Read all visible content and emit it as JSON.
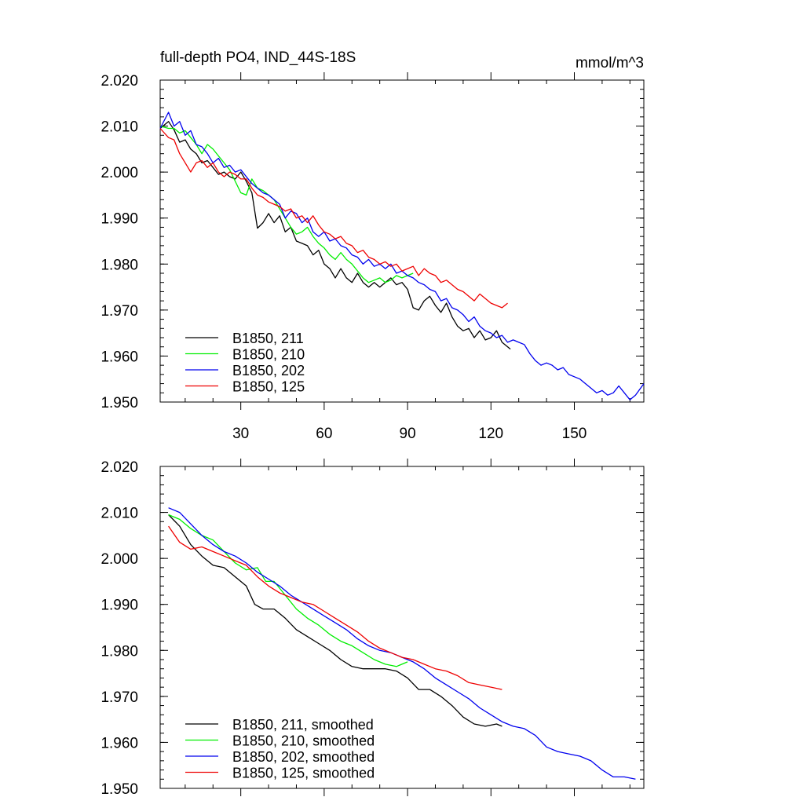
{
  "header": {
    "left_title": "full-depth PO4, IND_44S-18S",
    "right_title": "mmol/m^3"
  },
  "colors": {
    "black": "#000000",
    "green": "#00ee00",
    "blue": "#0000ee",
    "red": "#ee0000"
  },
  "chart_data": [
    {
      "type": "line",
      "title": "full-depth PO4, IND_44S-18S",
      "units": "mmol/m^3",
      "xlim": [
        1,
        175
      ],
      "ylim": [
        1.95,
        2.02
      ],
      "x_ticks": [
        30,
        60,
        90,
        120,
        150
      ],
      "x_tick_labels": [
        "30",
        "60",
        "90",
        "120",
        "150"
      ],
      "y_ticks": [
        1.95,
        1.96,
        1.97,
        1.98,
        1.99,
        2.0,
        2.01,
        2.02
      ],
      "y_tick_labels": [
        "1.950",
        "1.960",
        "1.970",
        "1.980",
        "1.990",
        "2.000",
        "2.010",
        "2.020"
      ],
      "legend": "bottom-left",
      "series": [
        {
          "name": "B1850, 211",
          "color": "#000000",
          "x": [
            1,
            4,
            6,
            8,
            10,
            12,
            14,
            16,
            18,
            20,
            22,
            24,
            26,
            28,
            30,
            32,
            34,
            36,
            38,
            40,
            42,
            44,
            46,
            48,
            50,
            52,
            54,
            56,
            58,
            60,
            62,
            64,
            66,
            68,
            70,
            72,
            74,
            76,
            78,
            80,
            82,
            84,
            86,
            88,
            90,
            92,
            94,
            96,
            98,
            100,
            102,
            104,
            106,
            108,
            110,
            112,
            114,
            116,
            118,
            120,
            122,
            124,
            127
          ],
          "values": [
            2.0095,
            2.011,
            2.0092,
            2.0065,
            2.007,
            2.005,
            2.004,
            2.002,
            2.0025,
            2.001,
            1.9995,
            2.0,
            1.999,
            1.9985,
            2.0,
            1.998,
            1.9955,
            1.9878,
            1.989,
            1.991,
            1.989,
            1.9905,
            1.987,
            1.988,
            1.985,
            1.9845,
            1.984,
            1.982,
            1.983,
            1.98,
            1.979,
            1.977,
            1.979,
            1.977,
            1.976,
            1.978,
            1.976,
            1.975,
            1.976,
            1.975,
            1.976,
            1.977,
            1.9755,
            1.976,
            1.9745,
            1.9705,
            1.97,
            1.972,
            1.973,
            1.971,
            1.9695,
            1.9715,
            1.9685,
            1.9665,
            1.9655,
            1.966,
            1.964,
            1.9655,
            1.9635,
            1.964,
            1.9655,
            1.963,
            1.9615
          ]
        },
        {
          "name": "B1850, 210",
          "color": "#00ee00",
          "x": [
            1,
            4,
            6,
            8,
            10,
            12,
            14,
            16,
            18,
            20,
            22,
            24,
            26,
            28,
            30,
            32,
            34,
            36,
            38,
            40,
            42,
            44,
            46,
            48,
            50,
            52,
            54,
            56,
            58,
            60,
            62,
            64,
            66,
            68,
            70,
            72,
            74,
            76,
            78,
            80,
            82,
            84,
            86,
            88,
            90,
            92
          ],
          "values": [
            2.01,
            2.0095,
            2.0095,
            2.0085,
            2.009,
            2.0075,
            2.006,
            2.004,
            2.006,
            2.005,
            2.0035,
            2.002,
            2.0005,
            1.998,
            1.9955,
            1.995,
            1.9985,
            1.9965,
            1.996,
            1.995,
            1.994,
            1.992,
            1.99,
            1.988,
            1.9865,
            1.987,
            1.988,
            1.986,
            1.9845,
            1.9835,
            1.982,
            1.981,
            1.9825,
            1.981,
            1.98,
            1.9785,
            1.977,
            1.976,
            1.9765,
            1.977,
            1.976,
            1.9765,
            1.9775,
            1.977,
            1.9775,
            1.978
          ]
        },
        {
          "name": "B1850, 202",
          "color": "#0000ee",
          "x": [
            1,
            4,
            6,
            8,
            10,
            12,
            14,
            16,
            18,
            20,
            22,
            24,
            26,
            28,
            30,
            32,
            34,
            36,
            38,
            40,
            42,
            44,
            46,
            48,
            50,
            52,
            54,
            56,
            58,
            60,
            62,
            64,
            66,
            68,
            70,
            72,
            74,
            76,
            78,
            80,
            82,
            84,
            86,
            88,
            90,
            92,
            94,
            96,
            98,
            100,
            102,
            104,
            106,
            108,
            110,
            112,
            114,
            116,
            118,
            120,
            122,
            124,
            126,
            128,
            130,
            132,
            134,
            136,
            138,
            140,
            142,
            144,
            146,
            148,
            150,
            152,
            154,
            156,
            158,
            160,
            162,
            164,
            166,
            168,
            170,
            172,
            175
          ],
          "values": [
            2.0095,
            2.013,
            2.01,
            2.011,
            2.008,
            2.009,
            2.006,
            2.0055,
            2.004,
            2.002,
            2.003,
            2.001,
            2.0015,
            2.0,
            2.0005,
            1.999,
            1.9975,
            1.9965,
            1.9955,
            1.995,
            1.994,
            1.993,
            1.99,
            1.9915,
            1.991,
            1.989,
            1.99,
            1.987,
            1.986,
            1.987,
            1.985,
            1.9855,
            1.984,
            1.9835,
            1.982,
            1.9815,
            1.98,
            1.981,
            1.9795,
            1.98,
            1.979,
            1.98,
            1.978,
            1.9785,
            1.9775,
            1.977,
            1.976,
            1.9755,
            1.9745,
            1.974,
            1.972,
            1.9725,
            1.9705,
            1.97,
            1.969,
            1.9675,
            1.9685,
            1.9665,
            1.9655,
            1.965,
            1.964,
            1.9645,
            1.963,
            1.9635,
            1.963,
            1.9625,
            1.9605,
            1.959,
            1.958,
            1.9585,
            1.958,
            1.957,
            1.9575,
            1.956,
            1.9555,
            1.955,
            1.954,
            1.953,
            1.952,
            1.9525,
            1.9515,
            1.952,
            1.9535,
            1.952,
            1.9505,
            1.9515,
            1.954
          ]
        },
        {
          "name": "B1850, 125",
          "color": "#ee0000",
          "x": [
            1,
            4,
            6,
            8,
            10,
            12,
            14,
            16,
            18,
            20,
            22,
            24,
            26,
            28,
            30,
            32,
            34,
            36,
            38,
            40,
            42,
            44,
            46,
            48,
            50,
            52,
            54,
            56,
            58,
            60,
            62,
            64,
            66,
            68,
            70,
            72,
            74,
            76,
            78,
            80,
            82,
            84,
            86,
            88,
            90,
            92,
            94,
            96,
            98,
            100,
            102,
            104,
            106,
            108,
            110,
            112,
            114,
            116,
            118,
            120,
            122,
            124,
            126
          ],
          "values": [
            2.0095,
            2.0075,
            2.007,
            2.004,
            2.002,
            2.0,
            2.002,
            2.0025,
            2.001,
            2.002,
            2.0,
            1.999,
            2.0,
            1.9995,
            1.9985,
            1.9985,
            1.9965,
            1.995,
            1.9945,
            1.9935,
            1.993,
            1.9925,
            1.9915,
            1.992,
            1.99,
            1.9905,
            1.989,
            1.9905,
            1.9885,
            1.987,
            1.9865,
            1.9855,
            1.986,
            1.9845,
            1.984,
            1.9825,
            1.983,
            1.9815,
            1.981,
            1.98,
            1.9805,
            1.9795,
            1.98,
            1.9785,
            1.979,
            1.9795,
            1.9775,
            1.979,
            1.978,
            1.9775,
            1.976,
            1.9765,
            1.9755,
            1.9745,
            1.974,
            1.973,
            1.972,
            1.9735,
            1.9725,
            1.9715,
            1.971,
            1.9705,
            1.9715
          ]
        }
      ]
    },
    {
      "type": "line",
      "xlim": [
        1,
        175
      ],
      "ylim": [
        1.95,
        2.02
      ],
      "x_ticks": [
        30,
        60,
        90,
        120,
        150
      ],
      "y_ticks": [
        1.95,
        1.96,
        1.97,
        1.98,
        1.99,
        2.0,
        2.01,
        2.02
      ],
      "y_tick_labels": [
        "1.950",
        "1.960",
        "1.970",
        "1.980",
        "1.990",
        "2.000",
        "2.010",
        "2.020"
      ],
      "legend": "bottom-left",
      "series": [
        {
          "name": "B1850, 211, smoothed",
          "color": "#000000",
          "x": [
            4,
            8,
            12,
            16,
            20,
            24,
            28,
            32,
            35,
            38,
            42,
            46,
            50,
            54,
            58,
            62,
            66,
            70,
            74,
            78,
            82,
            86,
            90,
            94,
            98,
            102,
            106,
            110,
            114,
            118,
            122,
            124
          ],
          "values": [
            2.0095,
            2.007,
            2.003,
            2.0005,
            1.9985,
            1.998,
            1.996,
            1.994,
            1.99,
            1.989,
            1.989,
            1.987,
            1.9845,
            1.983,
            1.9815,
            1.98,
            1.978,
            1.9765,
            1.976,
            1.976,
            1.976,
            1.9755,
            1.974,
            1.9715,
            1.9715,
            1.97,
            1.968,
            1.9655,
            1.964,
            1.9635,
            1.964,
            1.9635
          ]
        },
        {
          "name": "B1850, 210, smoothed",
          "color": "#00ee00",
          "x": [
            4,
            8,
            12,
            16,
            20,
            24,
            28,
            32,
            36,
            39,
            42,
            46,
            50,
            54,
            58,
            62,
            66,
            70,
            74,
            78,
            82,
            86,
            90
          ],
          "values": [
            2.0095,
            2.0085,
            2.0065,
            2.005,
            2.004,
            2.0015,
            1.999,
            1.9975,
            1.998,
            1.995,
            1.995,
            1.992,
            1.989,
            1.987,
            1.9855,
            1.9835,
            1.982,
            1.981,
            1.9795,
            1.978,
            1.977,
            1.9765,
            1.9775
          ]
        },
        {
          "name": "B1850, 202, smoothed",
          "color": "#0000ee",
          "x": [
            4,
            8,
            12,
            16,
            20,
            24,
            28,
            32,
            36,
            40,
            44,
            48,
            52,
            56,
            60,
            64,
            68,
            72,
            76,
            80,
            84,
            88,
            92,
            96,
            100,
            104,
            108,
            112,
            116,
            120,
            124,
            128,
            132,
            136,
            140,
            144,
            148,
            152,
            156,
            160,
            164,
            168,
            172
          ],
          "values": [
            2.011,
            2.01,
            2.0075,
            2.005,
            2.003,
            2.0015,
            2.0005,
            1.999,
            1.997,
            1.9955,
            1.994,
            1.992,
            1.9905,
            1.989,
            1.9875,
            1.986,
            1.9845,
            1.9825,
            1.981,
            1.98,
            1.9795,
            1.9785,
            1.9775,
            1.976,
            1.974,
            1.9725,
            1.971,
            1.9695,
            1.9675,
            1.966,
            1.9645,
            1.9635,
            1.963,
            1.9615,
            1.959,
            1.958,
            1.9575,
            1.957,
            1.956,
            1.954,
            1.9525,
            1.9525,
            1.952
          ]
        },
        {
          "name": "B1850, 125, smoothed",
          "color": "#ee0000",
          "x": [
            4,
            8,
            12,
            16,
            20,
            24,
            28,
            32,
            36,
            40,
            44,
            48,
            52,
            56,
            60,
            64,
            68,
            72,
            76,
            80,
            84,
            88,
            92,
            96,
            100,
            104,
            108,
            112,
            116,
            120,
            124
          ],
          "values": [
            2.007,
            2.0035,
            2.002,
            2.0025,
            2.0015,
            2.0005,
            1.9995,
            1.9985,
            1.996,
            1.994,
            1.9925,
            1.9915,
            1.9905,
            1.99,
            1.9885,
            1.987,
            1.9855,
            1.984,
            1.982,
            1.9805,
            1.9795,
            1.9785,
            1.978,
            1.977,
            1.976,
            1.9755,
            1.9745,
            1.973,
            1.9725,
            1.972,
            1.9715
          ]
        }
      ]
    }
  ]
}
